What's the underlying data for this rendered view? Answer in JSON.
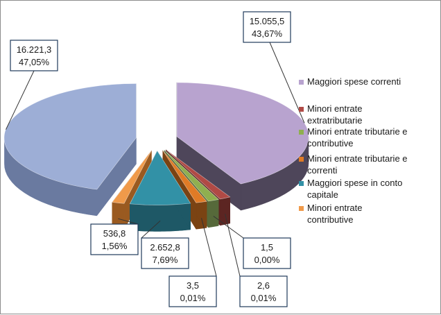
{
  "chart_data": {
    "type": "pie",
    "style": "3d-exploded",
    "title": "",
    "slices": [
      {
        "label": "Maggiori spese correnti",
        "value": 15055.5,
        "value_text": "15.055,5",
        "percent_text": "43,67%",
        "color": "#b8a3cf",
        "side_color": "#4e465a"
      },
      {
        "label": "Minori entrate extratributarie",
        "value": 2.6,
        "value_text": "2,6",
        "percent_text": "0,01%",
        "color": "#b04a45",
        "side_color": "#5c2522"
      },
      {
        "label": "Minori entrate tributarie e contributive",
        "value": 1.5,
        "value_text": "1,5",
        "percent_text": "0,00%",
        "color": "#8faf4f",
        "side_color": "#56693a"
      },
      {
        "label": "Minori entrate tributarie e correnti",
        "value": 3.5,
        "value_text": "3,5",
        "percent_text": "0,01%",
        "color": "#e07b26",
        "side_color": "#7a4313"
      },
      {
        "label": "Maggiori spese in conto capitale",
        "value": 2652.8,
        "value_text": "2.652,8",
        "percent_text": "7,69%",
        "color": "#3291a6",
        "side_color": "#1e5866"
      },
      {
        "label": "Minori entrate contributive",
        "value": 536.8,
        "value_text": "536,8",
        "percent_text": "1,56%",
        "color": "#f09a4a",
        "side_color": "#9a5a20"
      },
      {
        "label": "",
        "value": 16221.3,
        "value_text": "16.221,3",
        "percent_text": "47,05%",
        "color": "#9daed6",
        "side_color": "#6a7aa0"
      }
    ],
    "legend": {
      "placement": "right",
      "entries": [
        {
          "lines": [
            "Maggiori spese correnti"
          ],
          "color": "#b8a3cf"
        },
        {
          "lines": [
            "Minori entrate",
            "extratributarie"
          ],
          "color": "#b04a45"
        },
        {
          "lines": [
            "Minori entrate tributarie e",
            "contributive"
          ],
          "color": "#8faf4f"
        },
        {
          "lines": [
            "Minori entrate tributarie e",
            "correnti"
          ],
          "color": "#e07b26"
        },
        {
          "lines": [
            "Maggiori spese in conto",
            "capitale"
          ],
          "color": "#3291a6"
        },
        {
          "lines": [
            "Minori entrate",
            "contributive"
          ],
          "color": "#f09a4a"
        }
      ]
    }
  }
}
